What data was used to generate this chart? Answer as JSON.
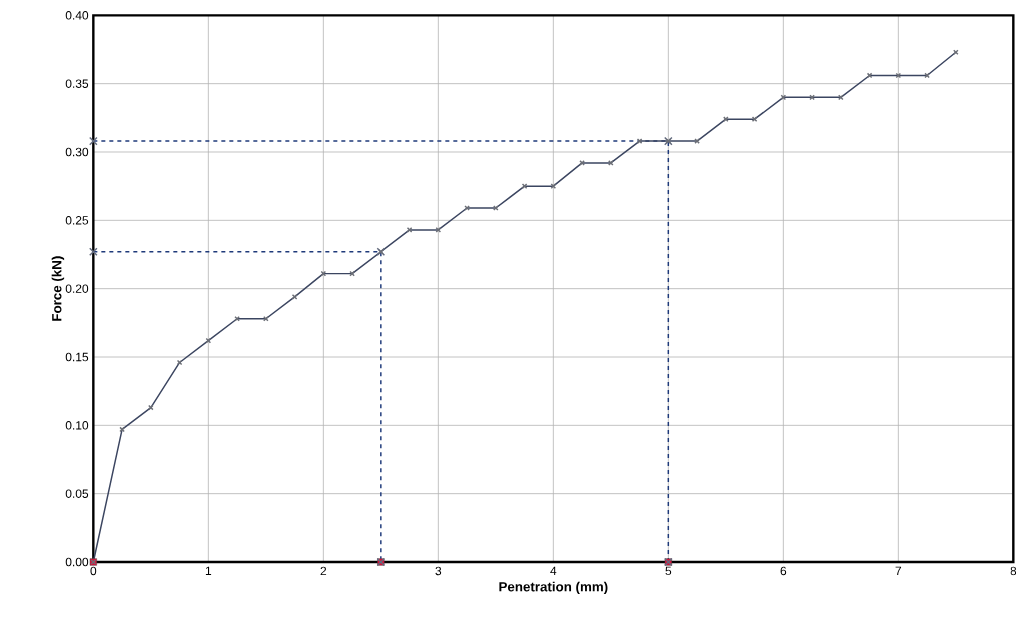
{
  "chart_data": {
    "type": "line",
    "xlabel": "Penetration  (mm)",
    "ylabel": "Force  (kN)",
    "xlim": [
      0,
      8
    ],
    "ylim": [
      0,
      0.4
    ],
    "xticks": [
      0,
      1,
      2,
      3,
      4,
      5,
      6,
      7,
      8
    ],
    "yticks": [
      {
        "value": 0,
        "label": "0.00"
      },
      {
        "value": 0.05,
        "label": "0.05"
      },
      {
        "value": 0.1,
        "label": "0.10"
      },
      {
        "value": 0.15,
        "label": "0.15"
      },
      {
        "value": 0.2,
        "label": "0.20"
      },
      {
        "value": 0.25,
        "label": "0.25"
      },
      {
        "value": 0.3,
        "label": "0.30"
      },
      {
        "value": 0.35,
        "label": "0.35"
      },
      {
        "value": 0.4,
        "label": "0.40"
      }
    ],
    "grid": true,
    "series": [
      {
        "color": "#3b4560",
        "marker": "cross",
        "line_style": "solid",
        "x": [
          0,
          0.25,
          0.5,
          0.75,
          1,
          1.25,
          1.5,
          1.75,
          2,
          2.25,
          2.5,
          2.75,
          3,
          3.25,
          3.5,
          3.75,
          4,
          4.25,
          4.5,
          4.75,
          5,
          5.25,
          5.5,
          5.75,
          6,
          6.25,
          6.5,
          6.75,
          7,
          7.25,
          7.5
        ],
        "values": [
          0,
          0.097,
          0.113,
          0.146,
          0.162,
          0.178,
          0.178,
          0.194,
          0.211,
          0.211,
          0.227,
          0.243,
          0.243,
          0.259,
          0.259,
          0.275,
          0.275,
          0.292,
          0.292,
          0.308,
          0.308,
          0.308,
          0.324,
          0.324,
          0.34,
          0.34,
          0.34,
          0.356,
          0.356,
          0.356,
          0.373
        ]
      },
      {
        "color": "#1f3a7a",
        "marker": "cross",
        "line_style": "dashed",
        "x": [
          0,
          2.5,
          2.5
        ],
        "values": [
          0.227,
          0.227,
          0
        ]
      },
      {
        "color": "#1f3a7a",
        "marker": "cross",
        "line_style": "dashed",
        "x": [
          0,
          5,
          5
        ],
        "values": [
          0.308,
          0.308,
          0
        ]
      },
      {
        "type": "scatter",
        "color": "#e0103a",
        "marker": "square",
        "x": [
          0,
          2.5,
          5
        ],
        "values": [
          0,
          0,
          0
        ]
      }
    ]
  }
}
